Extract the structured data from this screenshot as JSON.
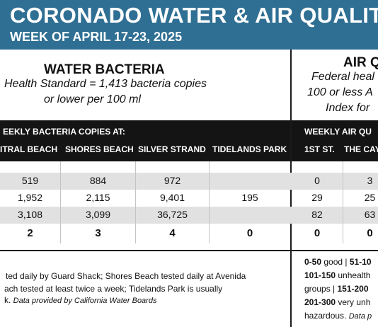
{
  "header": {
    "title": "CORONADO WATER & AIR QUALITY R",
    "subtitle": "WEEK OF APRIL 17-23, 2025"
  },
  "water": {
    "title": "WATER BACTERIA",
    "standard_line1": "Health Standard  = 1,413 bacteria copies",
    "standard_line2": "or lower per 100 ml",
    "band_label": "EEKLY BACTERIA COPIES AT:",
    "columns": [
      "ITRAL BEACH",
      "SHORES BEACH",
      "SILVER STRAND",
      "TIDELANDS PARK"
    ],
    "rows": [
      [
        "519",
        "884",
        "972",
        ""
      ],
      [
        "1,952",
        "2,115",
        "9,401",
        "195"
      ],
      [
        "3,108",
        "3,099",
        "36,725",
        ""
      ]
    ],
    "totals": [
      "2",
      "3",
      "4",
      "0"
    ],
    "footnote_line1": "ted daily by Guard Shack; Shores Beach tested daily at Avenida",
    "footnote_line2": "ach tested at least twice a week; Tidelands Park is usually",
    "footnote_line3_text": "k. ",
    "footnote_source": "Data provided by California Water Boards"
  },
  "air": {
    "title": "AIR Q",
    "standard_line1": "Federal heal",
    "standard_line2": "100 or less A",
    "standard_line3": "Index for",
    "band_label": "WEEKLY AIR QU",
    "columns": [
      "1ST ST.",
      "THE CAY"
    ],
    "rows": [
      [
        "0",
        "3"
      ],
      [
        "29",
        "25"
      ],
      [
        "82",
        "63"
      ]
    ],
    "totals": [
      "0",
      "0"
    ],
    "legend": {
      "l1_range": "0-50",
      "l1_text": " good | ",
      "l1_range2": "51-10",
      "l2_range": "101-150",
      "l2_text": " unhealth",
      "l3_text": "groups | ",
      "l3_range": "151-200",
      "l4_range": "201-300",
      "l4_text": " very unh",
      "l5_text": "hazardous. ",
      "l5_source": "Data p"
    }
  },
  "colors": {
    "header_bg": "#2f6f93",
    "band_bg": "#141414",
    "stripe": "#e1e1e1"
  }
}
